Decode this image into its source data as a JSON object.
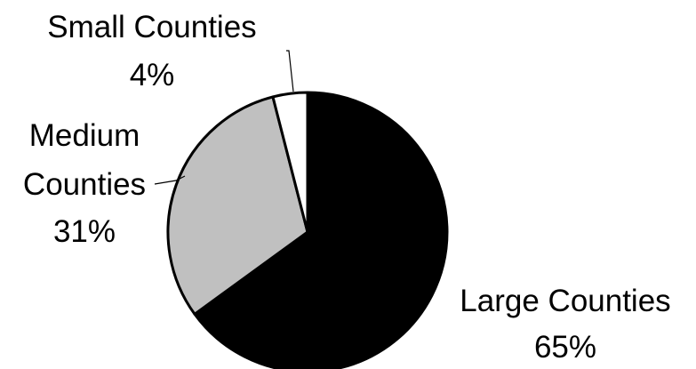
{
  "chart_data": {
    "type": "pie",
    "title": "",
    "categories": [
      "Large Counties",
      "Medium Counties",
      "Small Counties"
    ],
    "values": [
      65,
      31,
      4
    ],
    "value_labels": [
      "65%",
      "31%",
      "4%"
    ],
    "legend": "none",
    "colors": [
      "#000000",
      "#c0c0c0",
      "#ffffff"
    ],
    "stroke_color": "#000000",
    "start_angle_deg": 0,
    "direction": "clockwise"
  }
}
